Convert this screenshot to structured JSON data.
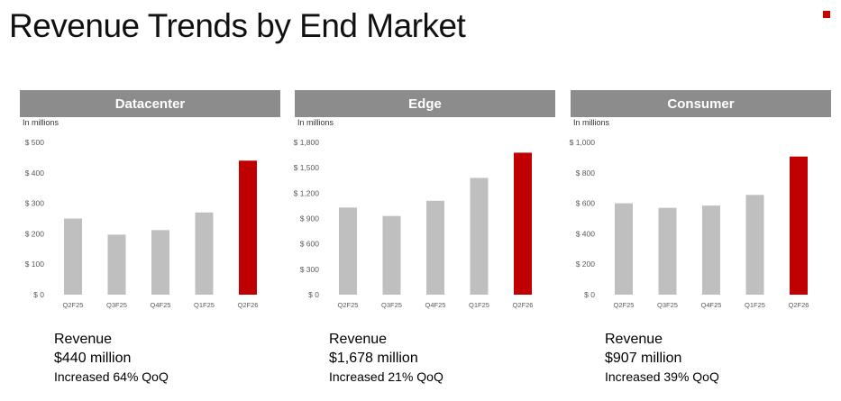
{
  "title": "Revenue Trends by End Market",
  "colors": {
    "bar": "#bfbfbf",
    "highlight": "#c00000",
    "header": "#8c8c8c"
  },
  "chart_data": [
    {
      "type": "bar",
      "title": "Datacenter",
      "units_label": "In millions",
      "categories": [
        "Q2F25",
        "Q3F25",
        "Q4F25",
        "Q1F25",
        "Q2F26"
      ],
      "values": [
        250,
        197,
        212,
        270,
        440
      ],
      "highlight_index": 4,
      "ylim": [
        0,
        500
      ],
      "yticks": [
        0,
        100,
        200,
        300,
        400,
        500
      ],
      "ytick_labels": [
        "$ 0",
        "$ 100",
        "$ 200",
        "$ 300",
        "$ 400",
        "$ 500"
      ],
      "grid": false,
      "caption": {
        "label": "Revenue",
        "value": "$440 million",
        "change": "Increased 64% QoQ"
      }
    },
    {
      "type": "bar",
      "title": "Edge",
      "units_label": "In millions",
      "categories": [
        "Q2F25",
        "Q3F25",
        "Q4F25",
        "Q1F25",
        "Q2F26"
      ],
      "values": [
        1030,
        930,
        1110,
        1380,
        1678
      ],
      "highlight_index": 4,
      "ylim": [
        0,
        1800
      ],
      "yticks": [
        0,
        300,
        600,
        900,
        1200,
        1500,
        1800
      ],
      "ytick_labels": [
        "$ 0",
        "$ 300",
        "$ 600",
        "$ 900",
        "$ 1,200",
        "$ 1,500",
        "$ 1,800"
      ],
      "grid": false,
      "caption": {
        "label": "Revenue",
        "value": "$1,678 million",
        "change": "Increased 21% QoQ"
      }
    },
    {
      "type": "bar",
      "title": "Consumer",
      "units_label": "In millions",
      "categories": [
        "Q2F25",
        "Q3F25",
        "Q4F25",
        "Q1F25",
        "Q2F26"
      ],
      "values": [
        600,
        570,
        585,
        655,
        907
      ],
      "highlight_index": 4,
      "ylim": [
        0,
        1000
      ],
      "yticks": [
        0,
        200,
        400,
        600,
        800,
        1000
      ],
      "ytick_labels": [
        "$ 0",
        "$ 200",
        "$ 400",
        "$ 600",
        "$ 800",
        "$ 1,000"
      ],
      "grid": false,
      "caption": {
        "label": "Revenue",
        "value": "$907 million",
        "change": "Increased 39% QoQ"
      }
    }
  ]
}
